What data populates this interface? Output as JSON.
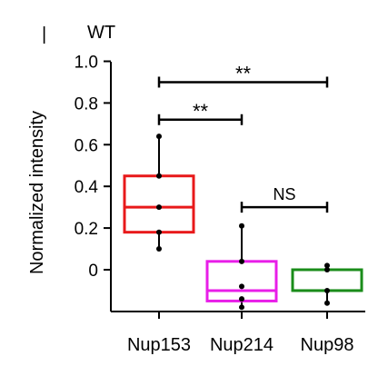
{
  "panel_mark": "|",
  "chart_data": {
    "type": "box",
    "title": "WT",
    "ylabel": "Normalized intensity",
    "xlabel": "",
    "ylim": [
      -0.2,
      1.0
    ],
    "yticks": [
      1.0,
      0.8,
      0.6,
      0.4,
      0.2,
      0
    ],
    "ytick_labels": [
      "1.0",
      "0.8",
      "0.6",
      "0.4",
      "0.2",
      "0"
    ],
    "categories": [
      "Nup153",
      "Nup214",
      "Nup98"
    ],
    "boxes": [
      {
        "category": "Nup153",
        "color": "#e8191a",
        "q1": 0.18,
        "median": 0.3,
        "q3": 0.45,
        "whisker_low": 0.1,
        "whisker_high": 0.64,
        "points": [
          0.64,
          0.45,
          0.3,
          0.18,
          0.1
        ]
      },
      {
        "category": "Nup214",
        "color": "#e81ee8",
        "q1": -0.15,
        "median": -0.1,
        "q3": 0.04,
        "whisker_low": -0.18,
        "whisker_high": 0.21,
        "points": [
          0.21,
          0.04,
          -0.08,
          -0.14,
          -0.18
        ]
      },
      {
        "category": "Nup98",
        "color": "#1a8c1a",
        "q1": -0.1,
        "median": -0.1,
        "q3": 0.0,
        "whisker_low": -0.16,
        "whisker_high": 0.02,
        "points": [
          0.02,
          0.0,
          -0.1,
          -0.16
        ]
      }
    ],
    "annotations": [
      {
        "from": "Nup153",
        "to": "Nup98",
        "y": 0.9,
        "label": "**"
      },
      {
        "from": "Nup153",
        "to": "Nup214",
        "y": 0.72,
        "label": "**"
      },
      {
        "from": "Nup214",
        "to": "Nup98",
        "y": 0.3,
        "label": "NS"
      }
    ]
  }
}
